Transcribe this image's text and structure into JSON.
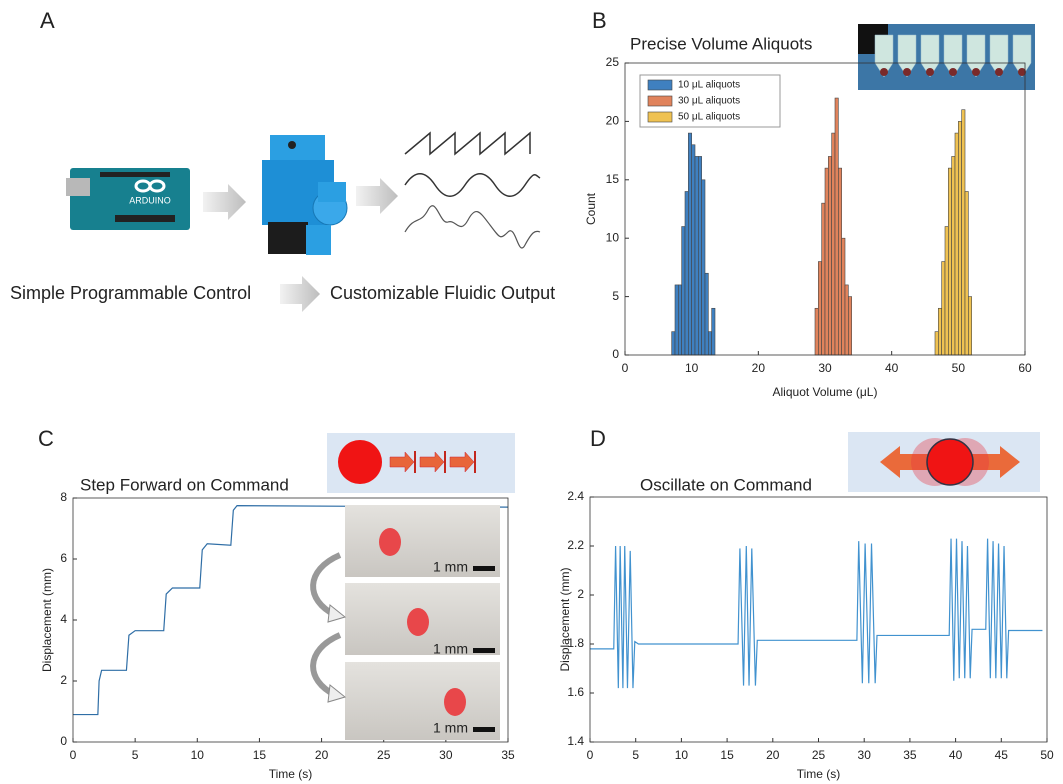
{
  "panel_labels": [
    "A",
    "B",
    "C",
    "D"
  ],
  "panel_a": {
    "board_label": "ARDUINO",
    "left_caption": "Simple Programmable Control",
    "right_caption": "Customizable Fluidic Output"
  },
  "chart_data": [
    {
      "type": "histogram",
      "title": "Precise Volume Aliquots",
      "x_label": "Aliquot Volume (μL)",
      "y_label": "Count",
      "xlim": [
        0,
        60
      ],
      "xticks": [
        0,
        10,
        20,
        30,
        40,
        50,
        60
      ],
      "ylim": [
        0,
        25
      ],
      "yticks": [
        0,
        5,
        10,
        15,
        20,
        25
      ],
      "legend": "upper left",
      "series": [
        {
          "name": "10 μL aliquots",
          "color": "#3f80c0",
          "bins": [
            7,
            7.5,
            8,
            8.5,
            9,
            9.5,
            10,
            10.5,
            11,
            11.5,
            12,
            12.5,
            13,
            13.5
          ],
          "counts": [
            2,
            6,
            6,
            11,
            14,
            19,
            18,
            17,
            17,
            15,
            7,
            2,
            4
          ]
        },
        {
          "name": "30 μL aliquots",
          "color": "#e0835c",
          "bins": [
            28.5,
            29,
            29.5,
            30,
            30.5,
            31,
            31.5,
            32,
            32.5,
            33,
            33.5,
            34
          ],
          "counts": [
            4,
            8,
            13,
            16,
            17,
            19,
            22,
            16,
            10,
            6,
            5
          ]
        },
        {
          "name": "50 μL aliquots",
          "color": "#efc252",
          "bins": [
            46.5,
            47,
            47.5,
            48,
            48.5,
            49,
            49.5,
            50,
            50.5,
            51,
            51.5,
            52
          ],
          "counts": [
            2,
            4,
            8,
            11,
            16,
            17,
            19,
            20,
            21,
            14,
            5
          ]
        }
      ]
    },
    {
      "type": "line",
      "title": "Step Forward on Command",
      "x_label": "Time (s)",
      "y_label": "Displacement (mm)",
      "xlim": [
        0,
        35
      ],
      "xticks": [
        0,
        5,
        10,
        15,
        20,
        25,
        30,
        35
      ],
      "ylim": [
        0,
        8
      ],
      "yticks": [
        0,
        2,
        4,
        6,
        8
      ],
      "annotations": [
        "1 mm",
        "1 mm",
        "1 mm"
      ],
      "series": [
        {
          "color": "#2f6ea6",
          "x": [
            0,
            2,
            2.1,
            2.3,
            4.3,
            4.5,
            5,
            7.3,
            7.5,
            8,
            10.2,
            10.4,
            10.8,
            12.7,
            12.9,
            13.2,
            35
          ],
          "values": [
            0.9,
            0.9,
            2.0,
            2.35,
            2.35,
            3.5,
            3.65,
            3.65,
            4.85,
            5.05,
            5.05,
            6.3,
            6.5,
            6.45,
            7.6,
            7.75,
            7.7
          ]
        }
      ]
    },
    {
      "type": "line",
      "title": "Oscillate on Command",
      "x_label": "Time (s)",
      "y_label": "Displacement (mm)",
      "xlim": [
        0,
        50
      ],
      "xticks": [
        0,
        5,
        10,
        15,
        20,
        25,
        30,
        35,
        40,
        45,
        50
      ],
      "ylim": [
        1.4,
        2.4
      ],
      "yticks": [
        1.4,
        1.6,
        1.8,
        2,
        2.2,
        2.4
      ],
      "series": [
        {
          "color": "#4192cf",
          "x": [
            0,
            2.6,
            2.8,
            3.1,
            3.3,
            3.6,
            3.8,
            4.1,
            4.4,
            4.7,
            4.9,
            5.3,
            16.2,
            16.4,
            16.8,
            17.1,
            17.4,
            17.7,
            18.1,
            18.3,
            29.2,
            29.4,
            29.8,
            30.1,
            30.5,
            30.8,
            31.2,
            31.4,
            39.3,
            39.5,
            39.8,
            40.1,
            40.4,
            40.7,
            41.0,
            41.3,
            41.6,
            41.8,
            43.3,
            43.5,
            43.8,
            44.1,
            44.4,
            44.7,
            45.0,
            45.3,
            45.6,
            45.8,
            49.5
          ],
          "values": [
            1.78,
            1.78,
            2.2,
            1.62,
            2.2,
            1.62,
            2.2,
            1.62,
            2.18,
            1.62,
            1.81,
            1.8,
            1.8,
            2.19,
            1.63,
            2.2,
            1.63,
            2.19,
            1.63,
            1.815,
            1.815,
            2.22,
            1.64,
            2.21,
            1.64,
            2.21,
            1.64,
            1.835,
            1.835,
            2.23,
            1.65,
            2.23,
            1.66,
            2.22,
            1.66,
            2.2,
            1.66,
            1.86,
            1.86,
            2.23,
            1.66,
            2.22,
            1.66,
            2.21,
            1.66,
            2.2,
            1.66,
            1.855,
            1.855
          ]
        }
      ]
    }
  ]
}
